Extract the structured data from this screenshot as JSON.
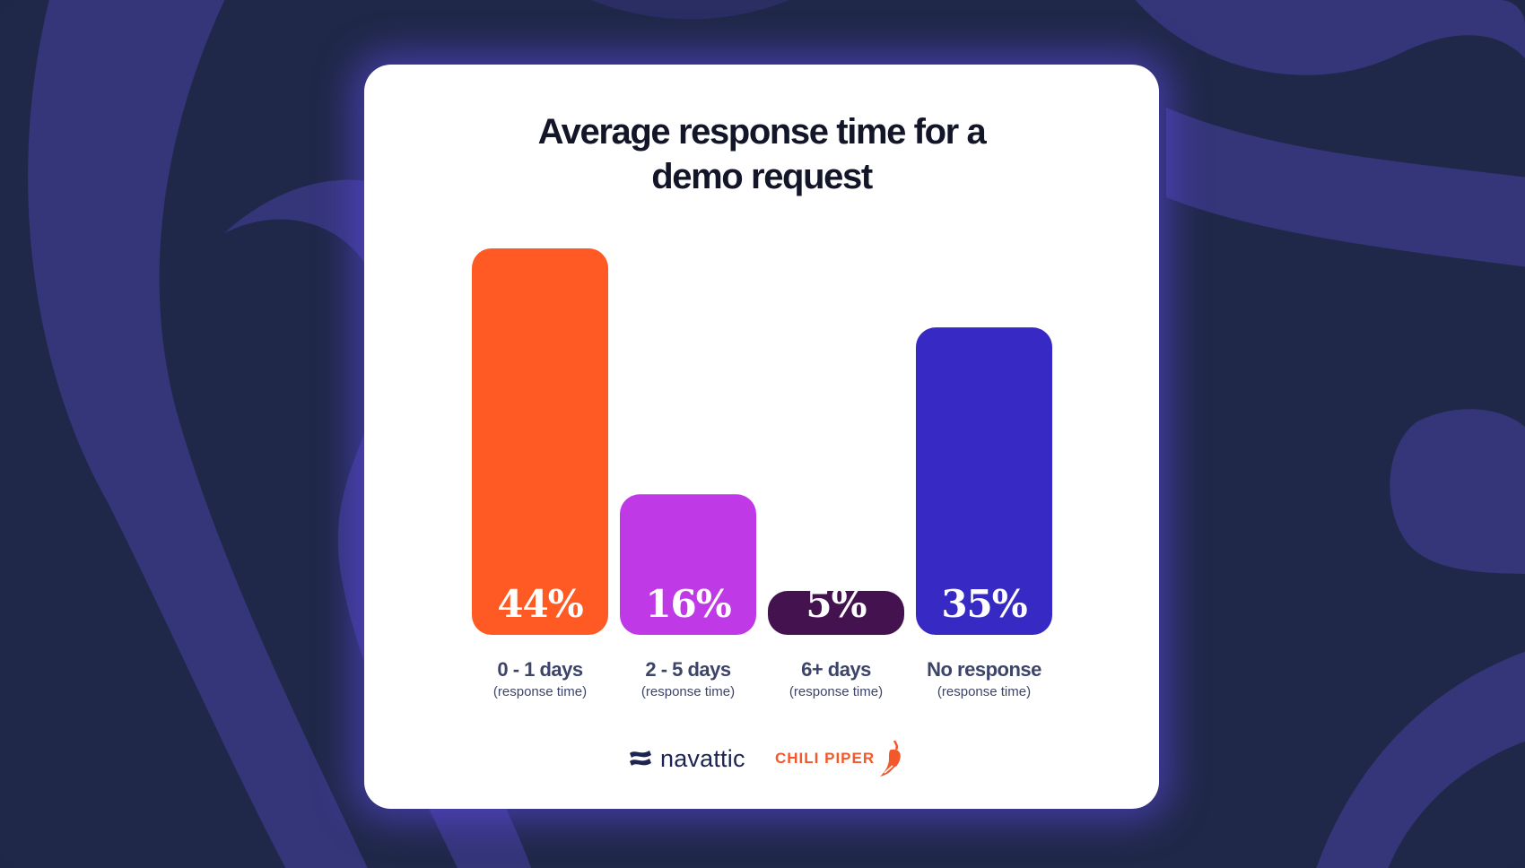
{
  "chart_data": {
    "type": "bar",
    "title_lines": [
      "Average response time for a",
      "demo request"
    ],
    "categories": [
      "0 - 1 days",
      "2 - 5 days",
      "6+ days",
      "No response"
    ],
    "category_sublabels": [
      "(response time)",
      "(response time)",
      "(response time)",
      "(response time)"
    ],
    "values": [
      44,
      16,
      5,
      35
    ],
    "value_labels": [
      "44%",
      "16%",
      "5%",
      "35%"
    ],
    "bar_colors": [
      "#ff5a23",
      "#c039e6",
      "#43124f",
      "#3729c4"
    ],
    "xlabel": "",
    "ylabel": "",
    "ylim": [
      0,
      44
    ],
    "grid": false,
    "legend": "none"
  },
  "logos": {
    "navattic": "navattic",
    "chili_piper": "CHILI PIPER"
  },
  "colors": {
    "background": "#202849",
    "background_swirl": "#35357a",
    "card": "#ffffff",
    "title": "#131629",
    "label": "#3d4469"
  }
}
